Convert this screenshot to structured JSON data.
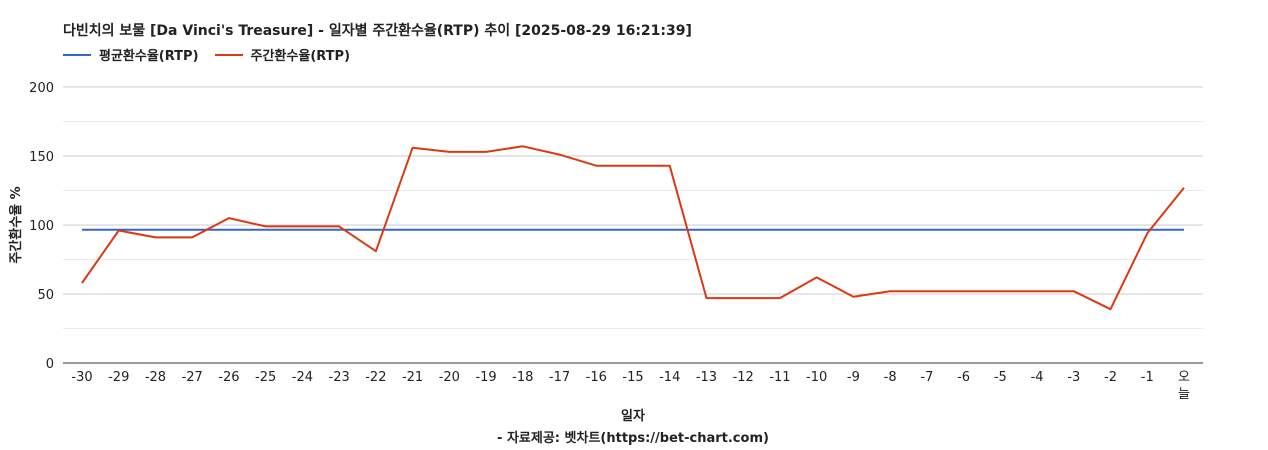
{
  "title": "다빈치의 보물 [Da Vinci's Treasure] - 일자별 주간환수율(RTP) 추이 [2025-08-29 16:21:39]",
  "chart_data": {
    "type": "line",
    "title": "다빈치의 보물 [Da Vinci's Treasure] - 일자별 주간환수율(RTP) 추이 [2025-08-29 16:21:39]",
    "xlabel": "일자",
    "ylabel": "주간환수율 %",
    "source_note": "- 자료제공: 벳차트(https://bet-chart.com)",
    "ylim": [
      0,
      200
    ],
    "yticks": [
      "0",
      "50",
      "100",
      "150",
      "200"
    ],
    "categories": [
      "-30",
      "-29",
      "-28",
      "-27",
      "-26",
      "-25",
      "-24",
      "-23",
      "-22",
      "-21",
      "-20",
      "-19",
      "-18",
      "-17",
      "-16",
      "-15",
      "-14",
      "-13",
      "-12",
      "-11",
      "-10",
      "-9",
      "-8",
      "-7",
      "-6",
      "-5",
      "-4",
      "-3",
      "-2",
      "-1",
      "오늘"
    ],
    "grid": true,
    "legend_position": "top-left",
    "series": [
      {
        "name": "평균환수율(RTP)",
        "color": "#3366cc",
        "values": [
          96.5,
          96.5,
          96.5,
          96.5,
          96.5,
          96.5,
          96.5,
          96.5,
          96.5,
          96.5,
          96.5,
          96.5,
          96.5,
          96.5,
          96.5,
          96.5,
          96.5,
          96.5,
          96.5,
          96.5,
          96.5,
          96.5,
          96.5,
          96.5,
          96.5,
          96.5,
          96.5,
          96.5,
          96.5,
          96.5,
          96.5
        ]
      },
      {
        "name": "주간환수율(RTP)",
        "color": "#dc3912",
        "values": [
          58,
          96,
          91,
          91,
          105,
          99,
          99,
          99,
          81,
          156,
          153,
          153,
          157,
          151,
          143,
          143,
          143,
          47,
          47,
          47,
          62,
          48,
          52,
          52,
          52,
          52,
          52,
          52,
          39,
          94,
          127
        ]
      }
    ]
  }
}
